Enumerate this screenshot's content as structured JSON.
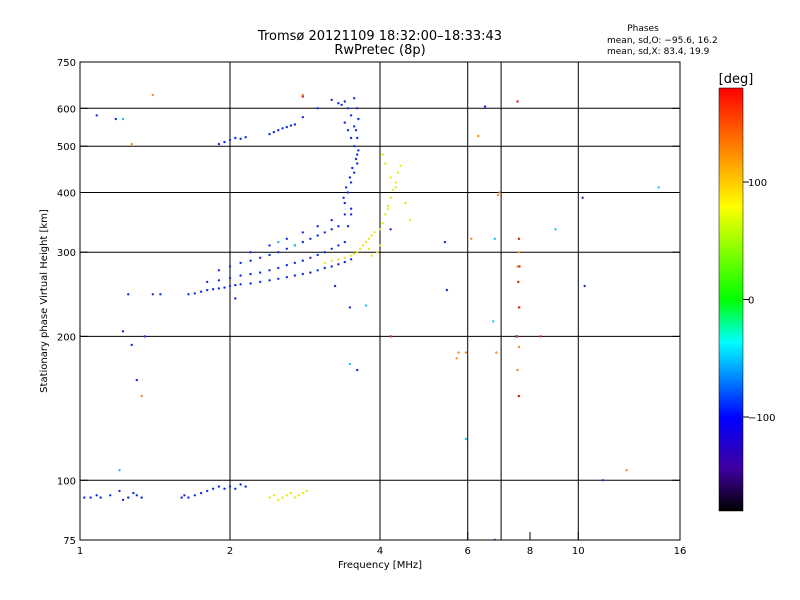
{
  "chart_data": {
    "type": "scatter",
    "title": "Tromsø 20121109 18:32:00–18:33:43",
    "subtitle": "RwPretec (8p)",
    "xlabel": "Frequency [MHz]",
    "ylabel": "Stationary phase Virtual Height [km]",
    "x_scale": "log2",
    "y_scale": "log",
    "xlim": [
      1,
      16
    ],
    "ylim": [
      75,
      750
    ],
    "x_ticks": [
      1,
      2,
      4,
      6,
      8,
      10,
      16
    ],
    "x_tick_labels": [
      "1",
      "2",
      "4",
      "6",
      "8",
      "10",
      "16"
    ],
    "x_grid": [
      2,
      4,
      6,
      7,
      10
    ],
    "y_ticks": [
      75,
      100,
      200,
      300,
      400,
      500,
      600,
      750
    ],
    "y_tick_labels": [
      "75",
      "100",
      "200",
      "300",
      "400",
      "500",
      "600",
      "750"
    ],
    "y_grid": [
      100,
      200,
      300,
      400,
      500,
      600
    ],
    "grid": true,
    "stats": {
      "heading": "Phases",
      "line_o": "mean, sd,O: −95.6, 16.2",
      "line_x": "mean, sd,X:  83.4, 19.9"
    },
    "colorbar": {
      "label": "[deg]",
      "range": [
        -180,
        180
      ],
      "ticks": [
        100,
        0,
        -100
      ],
      "tick_labels": [
        "100",
        "0",
        "−100"
      ],
      "colors": [
        "#ff0000",
        "#ff8000",
        "#ffff00",
        "#00ff00",
        "#00ffff",
        "#0000ff",
        "#4000a0",
        "#000000"
      ]
    },
    "series": [
      {
        "mode": "O",
        "color": "#1030e0",
        "x": [
          1.02,
          1.05,
          1.08,
          1.1,
          1.15,
          1.2,
          1.22,
          1.25,
          1.28,
          1.3,
          1.33,
          1.6,
          1.62,
          1.65,
          1.7,
          1.75,
          1.8,
          1.85,
          1.9,
          1.95,
          2.0,
          2.05,
          2.1,
          2.15,
          1.65,
          1.7,
          1.75,
          1.8,
          1.85,
          1.9,
          1.95,
          2.0,
          2.05,
          2.1,
          2.2,
          2.3,
          2.4,
          2.5,
          2.6,
          2.7,
          2.8,
          2.9,
          3.0,
          3.1,
          3.2,
          3.3,
          3.4,
          3.5,
          1.8,
          1.9,
          2.0,
          2.1,
          2.2,
          2.3,
          2.4,
          2.5,
          2.6,
          2.7,
          2.8,
          2.9,
          3.0,
          3.1,
          3.2,
          3.3,
          3.4,
          1.9,
          2.0,
          2.1,
          2.2,
          2.3,
          2.4,
          2.5,
          2.6,
          2.7,
          2.8,
          2.9,
          3.0,
          3.1,
          3.2,
          3.3,
          2.2,
          2.4,
          2.6,
          2.8,
          3.0,
          3.2,
          3.4,
          3.5,
          3.4,
          3.45,
          3.5,
          3.55,
          3.6,
          3.6,
          3.55,
          3.5,
          3.45,
          3.4,
          3.38,
          3.42,
          3.48,
          3.52,
          3.58,
          3.62,
          3.6,
          3.55,
          3.5,
          3.45,
          3.4,
          3.35,
          3.55,
          3.6,
          3.62,
          3.58,
          3.5,
          3.45,
          1.9,
          1.95,
          2.0,
          2.05,
          2.1,
          2.15,
          2.4,
          2.45,
          2.5,
          2.55,
          2.6,
          2.65,
          2.7,
          2.8,
          3.0,
          3.2,
          3.3,
          1.22,
          1.27,
          1.3,
          1.45,
          1.25,
          1.4,
          1.08,
          1.18,
          1.35,
          2.05,
          3.25,
          3.48,
          3.6,
          4.2,
          5.4,
          5.45,
          7.5,
          10.2,
          6.5,
          10.3,
          11.2,
          6.8,
          4.2
        ],
        "y": [
          92,
          92,
          93,
          92,
          93,
          95,
          91,
          92,
          94,
          93,
          92,
          92,
          93,
          92,
          93,
          94,
          95,
          96,
          97,
          96,
          97,
          96,
          98,
          97,
          245,
          246,
          248,
          250,
          251,
          252,
          253,
          255,
          256,
          257,
          258,
          260,
          262,
          264,
          266,
          268,
          270,
          272,
          275,
          278,
          280,
          283,
          286,
          290,
          260,
          262,
          265,
          268,
          270,
          272,
          275,
          278,
          282,
          285,
          288,
          292,
          296,
          300,
          305,
          310,
          315,
          275,
          280,
          285,
          288,
          292,
          296,
          300,
          305,
          310,
          315,
          320,
          325,
          330,
          335,
          340,
          300,
          310,
          320,
          330,
          340,
          350,
          360,
          370,
          380,
          400,
          420,
          440,
          460,
          480,
          500,
          520,
          540,
          560,
          390,
          410,
          430,
          450,
          470,
          490,
          520,
          550,
          580,
          600,
          620,
          610,
          630,
          600,
          570,
          540,
          360,
          340,
          505,
          510,
          515,
          520,
          518,
          522,
          530,
          535,
          540,
          545,
          548,
          552,
          555,
          575,
          600,
          625,
          615,
          205,
          192,
          162,
          245,
          245,
          245,
          580,
          570,
          200,
          240,
          255,
          230,
          170,
          335,
          315,
          250,
          200,
          390,
          605,
          255,
          100,
          75,
          200
        ]
      },
      {
        "mode": "X",
        "color": "#e8e820",
        "x": [
          2.4,
          2.45,
          2.5,
          2.55,
          2.6,
          2.65,
          2.7,
          2.75,
          2.8,
          2.85,
          3.1,
          3.2,
          3.3,
          3.4,
          3.5,
          3.55,
          3.6,
          3.65,
          3.7,
          3.75,
          3.8,
          3.85,
          3.9,
          4.0,
          4.05,
          4.1,
          4.15,
          4.2,
          4.25,
          4.3,
          4.35,
          4.4,
          4.5,
          4.6,
          4.05,
          4.1,
          4.2,
          4.3,
          4.15,
          4.2,
          3.95,
          4.0,
          3.8,
          3.85
        ],
        "y": [
          92,
          93,
          91,
          92,
          93,
          94,
          92,
          93,
          94,
          95,
          285,
          288,
          290,
          292,
          295,
          298,
          300,
          305,
          310,
          315,
          320,
          325,
          330,
          335,
          345,
          360,
          375,
          390,
          405,
          420,
          440,
          455,
          380,
          350,
          480,
          460,
          430,
          410,
          370,
          390,
          300,
          310,
          305,
          295
        ]
      },
      {
        "mode": "orange",
        "color": "#f09020",
        "x": [
          1.4,
          1.27,
          1.33,
          2.8,
          5.7,
          5.75,
          6.1,
          6.3,
          6.9,
          6.95,
          7.6,
          7.6,
          7.55,
          7.58,
          7.62,
          7.6,
          7.55,
          7.6,
          12.5,
          5.95,
          6.85
        ],
        "y": [
          640,
          505,
          150,
          640,
          180,
          185,
          320,
          525,
          395,
          400,
          320,
          300,
          280,
          260,
          230,
          190,
          170,
          150,
          105,
          185,
          185
        ]
      },
      {
        "mode": "cyan",
        "color": "#20c0f0",
        "x": [
          1.2,
          1.22,
          3.75,
          3.48,
          5.95,
          6.75,
          6.8,
          9.0,
          14.5,
          2.5,
          2.7
        ],
        "y": [
          105,
          570,
          232,
          175,
          122,
          215,
          320,
          335,
          410,
          315,
          310
        ]
      },
      {
        "mode": "red",
        "color": "#e02020",
        "x": [
          7.55,
          7.6,
          7.62,
          7.58,
          7.6,
          7.55,
          7.6,
          8.4,
          2.8,
          4.2
        ],
        "y": [
          620,
          320,
          280,
          260,
          230,
          200,
          150,
          200,
          635,
          200
        ]
      }
    ]
  }
}
